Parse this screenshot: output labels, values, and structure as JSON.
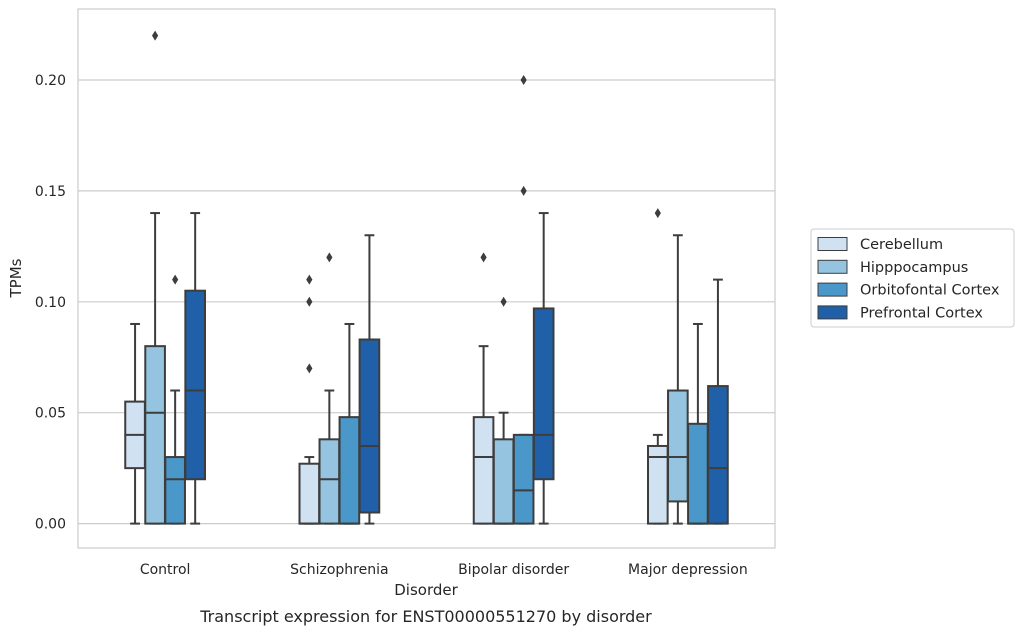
{
  "caption": "Transcript expression for ENST00000551270 by disorder",
  "colors": {
    "grid": "#cccccc",
    "frame": "#cccccc",
    "box_edge": "#3d3d3d",
    "text": "#262626"
  },
  "chart_data": {
    "type": "box",
    "xlabel": "Disorder",
    "ylabel": "TPMs",
    "ylim": [
      -0.011,
      0.232
    ],
    "yticks": [
      0.0,
      0.05,
      0.1,
      0.15,
      0.2
    ],
    "ytick_labels": [
      "0.00",
      "0.05",
      "0.10",
      "0.15",
      "0.20"
    ],
    "grid": "horizontal",
    "legend_position": "right",
    "categories": [
      "Control",
      "Schizophrenia",
      "Bipolar disorder",
      "Major depression"
    ],
    "series": [
      {
        "name": "Cerebellum",
        "color": "#d0e1f2",
        "boxes": [
          {
            "whislo": 0.0,
            "q1": 0.025,
            "med": 0.04,
            "q3": 0.055,
            "whishi": 0.09,
            "fliers": []
          },
          {
            "whislo": 0.0,
            "q1": 0.0,
            "med": 0.0,
            "q3": 0.027,
            "whishi": 0.03,
            "fliers": [
              0.07,
              0.1,
              0.11
            ]
          },
          {
            "whislo": 0.0,
            "q1": 0.0,
            "med": 0.03,
            "q3": 0.048,
            "whishi": 0.08,
            "fliers": [
              0.12
            ]
          },
          {
            "whislo": 0.0,
            "q1": 0.0,
            "med": 0.03,
            "q3": 0.035,
            "whishi": 0.04,
            "fliers": [
              0.14
            ]
          }
        ]
      },
      {
        "name": "Hipppocampus",
        "color": "#94c4df",
        "boxes": [
          {
            "whislo": 0.0,
            "q1": 0.0,
            "med": 0.05,
            "q3": 0.08,
            "whishi": 0.14,
            "fliers": [
              0.22
            ]
          },
          {
            "whislo": 0.0,
            "q1": 0.0,
            "med": 0.02,
            "q3": 0.038,
            "whishi": 0.06,
            "fliers": [
              0.12
            ]
          },
          {
            "whislo": 0.0,
            "q1": 0.0,
            "med": 0.0,
            "q3": 0.038,
            "whishi": 0.05,
            "fliers": [
              0.1
            ]
          },
          {
            "whislo": 0.0,
            "q1": 0.01,
            "med": 0.03,
            "q3": 0.06,
            "whishi": 0.13,
            "fliers": []
          }
        ]
      },
      {
        "name": "Orbitofontal Cortex",
        "color": "#4a98c9",
        "boxes": [
          {
            "whislo": 0.0,
            "q1": 0.0,
            "med": 0.02,
            "q3": 0.03,
            "whishi": 0.06,
            "fliers": [
              0.11
            ]
          },
          {
            "whislo": 0.0,
            "q1": 0.0,
            "med": 0.0,
            "q3": 0.048,
            "whishi": 0.09,
            "fliers": []
          },
          {
            "whislo": 0.0,
            "q1": 0.0,
            "med": 0.015,
            "q3": 0.04,
            "whishi": 0.04,
            "fliers": [
              0.15,
              0.2
            ]
          },
          {
            "whislo": 0.0,
            "q1": 0.0,
            "med": 0.0,
            "q3": 0.045,
            "whishi": 0.09,
            "fliers": []
          }
        ]
      },
      {
        "name": "Prefrontal Cortex",
        "color": "#2060a8",
        "boxes": [
          {
            "whislo": 0.0,
            "q1": 0.02,
            "med": 0.06,
            "q3": 0.105,
            "whishi": 0.14,
            "fliers": []
          },
          {
            "whislo": 0.0,
            "q1": 0.005,
            "med": 0.035,
            "q3": 0.083,
            "whishi": 0.13,
            "fliers": []
          },
          {
            "whislo": 0.0,
            "q1": 0.02,
            "med": 0.04,
            "q3": 0.097,
            "whishi": 0.14,
            "fliers": []
          },
          {
            "whislo": 0.0,
            "q1": 0.0,
            "med": 0.025,
            "q3": 0.062,
            "whishi": 0.11,
            "fliers": []
          }
        ]
      }
    ]
  }
}
